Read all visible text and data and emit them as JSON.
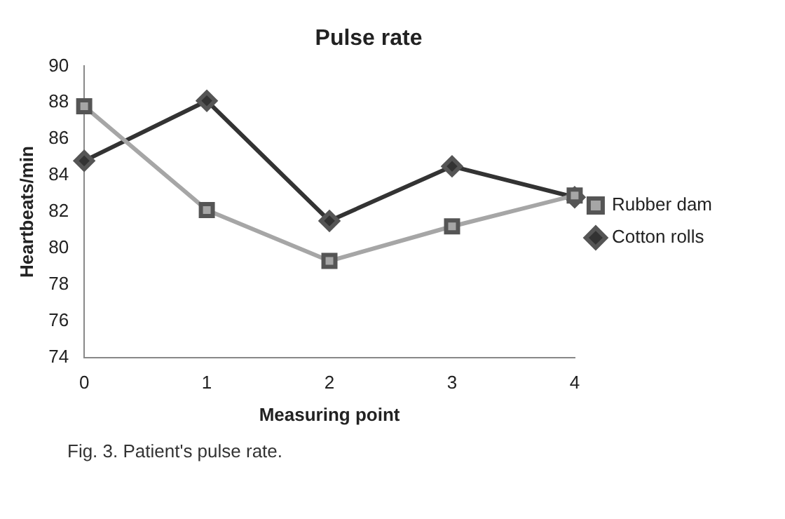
{
  "chart_data": {
    "type": "line",
    "title": "Pulse rate",
    "xlabel": "Measuring point",
    "ylabel": "Heartbeats/min",
    "categories": [
      "0",
      "1",
      "2",
      "3",
      "4"
    ],
    "series": [
      {
        "name": "Cotton rolls",
        "color": "#333333",
        "marker": "diamond",
        "values": [
          84.8,
          88.1,
          81.5,
          84.5,
          82.8
        ]
      },
      {
        "name": "Rubber dam",
        "color": "#a6a6a6",
        "marker": "square",
        "values": [
          87.8,
          82.1,
          79.3,
          81.2,
          82.9
        ]
      }
    ],
    "ylim": [
      74,
      90
    ],
    "yticks": [
      74,
      76,
      78,
      80,
      82,
      84,
      86,
      88,
      90
    ],
    "grid": false,
    "legend": "right",
    "annotations": [
      "Fig. 3.  Patient's pulse rate."
    ]
  }
}
